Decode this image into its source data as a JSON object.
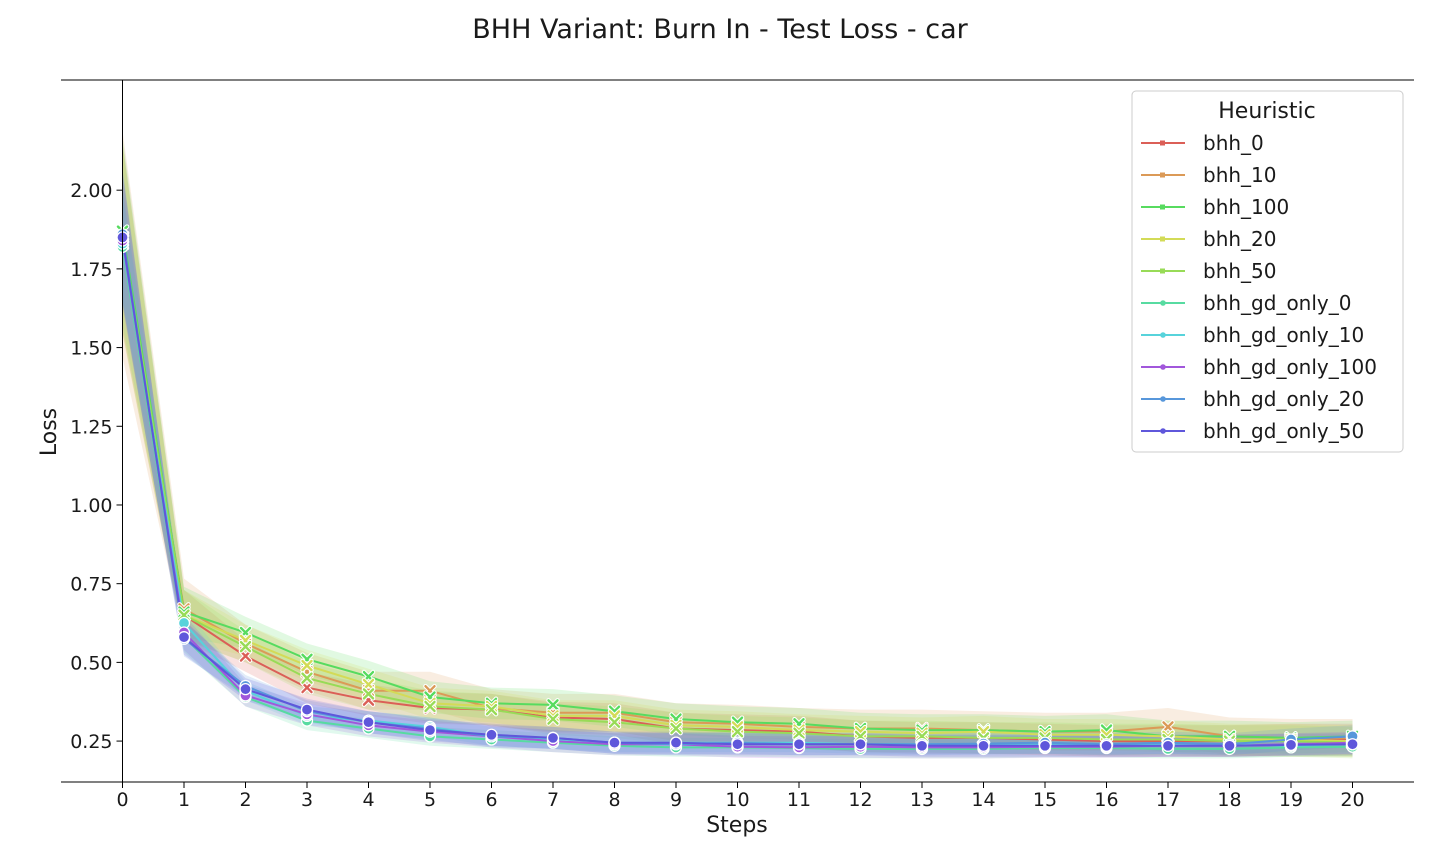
{
  "chart_data": {
    "type": "line",
    "title": "BHH Variant: Burn In - Test Loss - car",
    "xlabel": "Steps",
    "ylabel": "Loss",
    "xlim": [
      -1,
      21
    ],
    "ylim": [
      0.12,
      2.35
    ],
    "x": [
      0,
      1,
      2,
      3,
      4,
      5,
      6,
      7,
      8,
      9,
      10,
      11,
      12,
      13,
      14,
      15,
      16,
      17,
      18,
      19,
      20
    ],
    "x_ticks": [
      "0",
      "1",
      "2",
      "3",
      "4",
      "5",
      "6",
      "7",
      "8",
      "9",
      "10",
      "11",
      "12",
      "13",
      "14",
      "15",
      "16",
      "17",
      "18",
      "19",
      "20"
    ],
    "y_ticks": [
      "0.25",
      "0.50",
      "0.75",
      "1.00",
      "1.25",
      "1.50",
      "1.75",
      "2.00"
    ],
    "y_tick_values": [
      0.25,
      0.5,
      0.75,
      1.0,
      1.25,
      1.5,
      1.75,
      2.0
    ],
    "grid": false,
    "legend": {
      "title": "Heuristic",
      "placement": "top-right"
    },
    "series": [
      {
        "name": "bhh_0",
        "color": "#db5f57",
        "marker": "x",
        "band": 0.05,
        "values": [
          1.85,
          0.65,
          0.52,
          0.42,
          0.38,
          0.355,
          0.35,
          0.325,
          0.32,
          0.29,
          0.285,
          0.28,
          0.265,
          0.26,
          0.26,
          0.255,
          0.25,
          0.25,
          0.25,
          0.255,
          0.255
        ]
      },
      {
        "name": "bhh_10",
        "color": "#db9a57",
        "marker": "x",
        "band": 0.06,
        "values": [
          1.83,
          0.67,
          0.56,
          0.47,
          0.41,
          0.41,
          0.355,
          0.34,
          0.34,
          0.31,
          0.305,
          0.295,
          0.29,
          0.29,
          0.285,
          0.28,
          0.28,
          0.295,
          0.265,
          0.26,
          0.26
        ]
      },
      {
        "name": "bhh_100",
        "color": "#57db5f",
        "marker": "x",
        "band": 0.05,
        "values": [
          1.87,
          0.66,
          0.595,
          0.51,
          0.455,
          0.39,
          0.37,
          0.365,
          0.345,
          0.32,
          0.31,
          0.305,
          0.29,
          0.285,
          0.285,
          0.28,
          0.285,
          0.265,
          0.265,
          0.26,
          0.265
        ]
      },
      {
        "name": "bhh_20",
        "color": "#d3db57",
        "marker": "x",
        "band": 0.05,
        "values": [
          1.84,
          0.65,
          0.57,
          0.49,
          0.43,
          0.37,
          0.36,
          0.33,
          0.33,
          0.3,
          0.295,
          0.285,
          0.28,
          0.275,
          0.28,
          0.27,
          0.27,
          0.265,
          0.255,
          0.255,
          0.25
        ]
      },
      {
        "name": "bhh_50",
        "color": "#98db57",
        "marker": "x",
        "band": 0.05,
        "values": [
          1.85,
          0.65,
          0.55,
          0.45,
          0.4,
          0.36,
          0.35,
          0.32,
          0.31,
          0.29,
          0.28,
          0.275,
          0.265,
          0.265,
          0.26,
          0.26,
          0.255,
          0.255,
          0.25,
          0.25,
          0.245
        ]
      },
      {
        "name": "bhh_gd_only_0",
        "color": "#57dba1",
        "marker": "o",
        "band": 0.03,
        "values": [
          1.82,
          0.58,
          0.39,
          0.315,
          0.29,
          0.265,
          0.255,
          0.245,
          0.235,
          0.23,
          0.23,
          0.228,
          0.225,
          0.225,
          0.225,
          0.228,
          0.228,
          0.225,
          0.225,
          0.23,
          0.232
        ]
      },
      {
        "name": "bhh_gd_only_10",
        "color": "#57d3db",
        "marker": "o",
        "band": 0.03,
        "values": [
          1.83,
          0.625,
          0.41,
          0.33,
          0.315,
          0.295,
          0.265,
          0.255,
          0.245,
          0.245,
          0.245,
          0.245,
          0.24,
          0.24,
          0.24,
          0.24,
          0.24,
          0.238,
          0.24,
          0.235,
          0.24
        ]
      },
      {
        "name": "bhh_gd_only_100",
        "color": "#a157db",
        "marker": "o",
        "band": 0.035,
        "values": [
          1.84,
          0.595,
          0.395,
          0.335,
          0.3,
          0.28,
          0.265,
          0.25,
          0.24,
          0.24,
          0.232,
          0.23,
          0.232,
          0.23,
          0.23,
          0.232,
          0.232,
          0.235,
          0.235,
          0.24,
          0.245
        ]
      },
      {
        "name": "bhh_gd_only_20",
        "color": "#5797db",
        "marker": "o",
        "band": 0.035,
        "values": [
          1.86,
          0.575,
          0.425,
          0.345,
          0.31,
          0.29,
          0.265,
          0.26,
          0.245,
          0.24,
          0.245,
          0.24,
          0.24,
          0.24,
          0.242,
          0.245,
          0.24,
          0.245,
          0.24,
          0.255,
          0.265
        ]
      },
      {
        "name": "bhh_gd_only_50",
        "color": "#5f57db",
        "marker": "o",
        "band": 0.035,
        "values": [
          1.85,
          0.58,
          0.415,
          0.35,
          0.31,
          0.285,
          0.27,
          0.26,
          0.245,
          0.245,
          0.24,
          0.24,
          0.24,
          0.235,
          0.235,
          0.235,
          0.235,
          0.235,
          0.235,
          0.238,
          0.24
        ]
      }
    ]
  }
}
